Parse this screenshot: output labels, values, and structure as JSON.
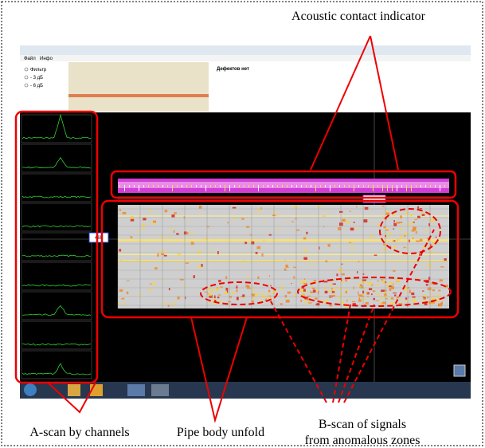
{
  "annotations": {
    "contact": "Acoustic contact indicator",
    "ascan": "A-scan by channels",
    "unfold": "Pipe body unfold",
    "bscan_line1": "B-scan of signals",
    "bscan_line2": "from anomalous zones"
  },
  "screenshot": {
    "menu": [
      "Файл",
      "Инфо"
    ],
    "options": [
      "Фильтр",
      "- 3 дБ",
      "- 6 дБ"
    ],
    "status": "Дефектов нет",
    "marker": "465"
  }
}
